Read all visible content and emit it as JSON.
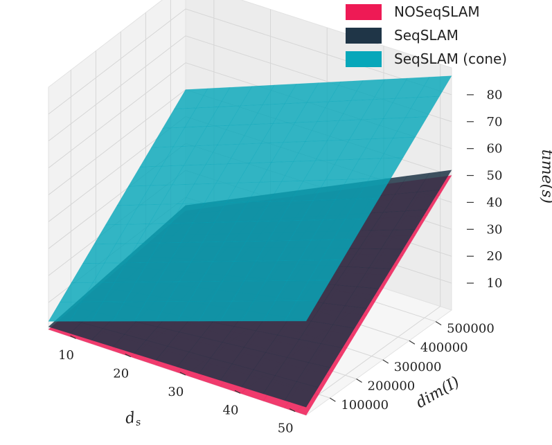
{
  "chart_data": {
    "type": "surface3d",
    "xlabel": "d_s",
    "ylabel": "dim(I)",
    "zlabel": "time(s)",
    "x_ticks": [
      "10",
      "20",
      "30",
      "40",
      "50"
    ],
    "y_ticks": [
      "100000",
      "200000",
      "300000",
      "400000",
      "500000"
    ],
    "z_ticks": [
      "10",
      "20",
      "30",
      "40",
      "50",
      "60",
      "70",
      "80"
    ],
    "xlim": [
      5,
      52
    ],
    "ylim": [
      10000,
      560000
    ],
    "zlim": [
      0,
      90
    ],
    "grid": true,
    "legend_position": "top-right",
    "colors": {
      "NOSeqSLAM": "#ee1a55",
      "SeqSLAM": "#1f3547",
      "SeqSLAM (cone)": "#07a7ba"
    },
    "series": [
      {
        "name": "NOSeqSLAM",
        "note_corners_time_s": {
          "ds5_dim10000": 0,
          "ds52_dim10000": 0,
          "ds52_dim560000": 50,
          "ds5_dim560000": 5
        },
        "values": [
          [
            0,
            0,
            50
          ],
          [
            0,
            1,
            5
          ]
        ]
      },
      {
        "name": "SeqSLAM",
        "values": [
          [
            1,
            3,
            52
          ],
          [
            1,
            5,
            7
          ]
        ]
      },
      {
        "name": "SeqSLAM (cone)",
        "values": [
          [
            3,
            35,
            87
          ],
          [
            2,
            6,
            50
          ]
        ]
      }
    ]
  },
  "legend": {
    "items": [
      {
        "label": "NOSeqSLAM",
        "color": "#ee1a55"
      },
      {
        "label": "SeqSLAM",
        "color": "#1f3547"
      },
      {
        "label": "SeqSLAM (cone)",
        "color": "#07a7ba"
      }
    ]
  },
  "axis_titles": {
    "x": "d",
    "x_sub": "s",
    "y": "dim(I)",
    "z": "time(s)"
  }
}
